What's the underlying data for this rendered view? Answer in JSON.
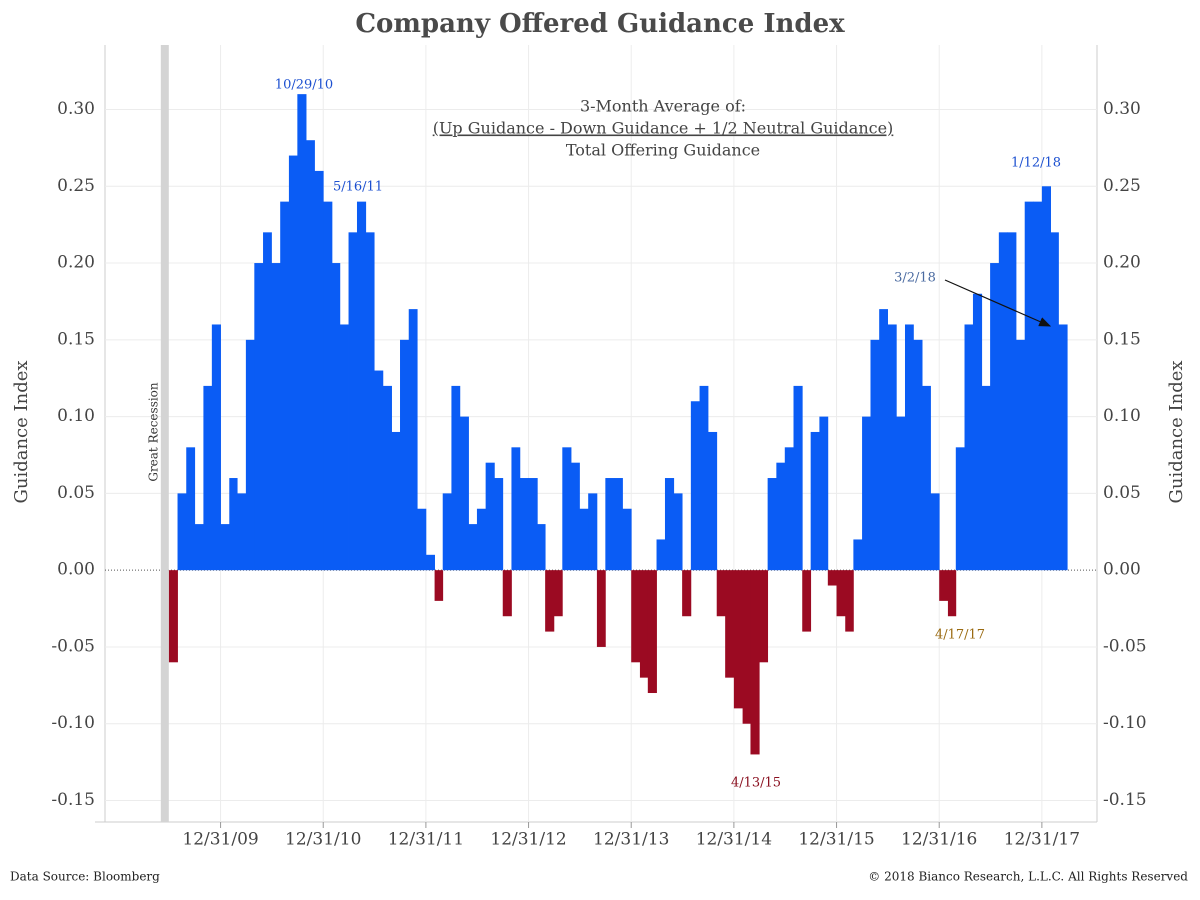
{
  "chart_data": {
    "type": "bar",
    "title": "Company Offered Guidance Index",
    "subtitle_lines": [
      "3-Month Average of:",
      "(Up Guidance - Down Guidance + 1/2 Neutral Guidance)",
      "Total Offering Guidance"
    ],
    "y_label": "Guidance Index",
    "y2_label": "Guidance Index",
    "source": "Data Source: Bloomberg",
    "copyright": "© 2018 Bianco Research, L.L.C. All Rights Reserved",
    "recession_label": "Great Recession",
    "recession_end": "06/30/09",
    "color": "#0a5cf5",
    "negative_color": "#9b0a22",
    "grid": true,
    "x": [
      "07/31/09",
      "08/31/09",
      "09/30/09",
      "10/31/09",
      "11/30/09",
      "12/31/09",
      "01/31/10",
      "02/28/10",
      "03/31/10",
      "04/30/10",
      "05/31/10",
      "06/30/10",
      "07/31/10",
      "08/31/10",
      "09/30/10",
      "10/31/10",
      "11/30/10",
      "12/31/10",
      "01/31/11",
      "02/28/11",
      "03/31/11",
      "04/30/11",
      "05/31/11",
      "06/30/11",
      "07/31/11",
      "08/31/11",
      "09/30/11",
      "10/31/11",
      "11/30/11",
      "12/31/11",
      "01/31/12",
      "02/29/12",
      "03/31/12",
      "04/30/12",
      "05/31/12",
      "06/30/12",
      "07/31/12",
      "08/31/12",
      "09/30/12",
      "10/31/12",
      "11/30/12",
      "12/31/12",
      "01/31/13",
      "02/28/13",
      "03/31/13",
      "04/30/13",
      "05/31/13",
      "06/30/13",
      "07/31/13",
      "08/31/13",
      "09/30/13",
      "10/31/13",
      "11/30/13",
      "12/31/13",
      "01/31/14",
      "02/28/14",
      "03/31/14",
      "04/30/14",
      "05/31/14",
      "06/30/14",
      "07/31/14",
      "08/31/14",
      "09/30/14",
      "10/31/14",
      "11/30/14",
      "12/31/14",
      "01/31/15",
      "02/28/15",
      "03/31/15",
      "04/30/15",
      "05/31/15",
      "06/30/15",
      "07/31/15",
      "08/31/15",
      "09/30/15",
      "10/31/15",
      "11/30/15",
      "12/31/15",
      "01/31/16",
      "02/29/16",
      "03/31/16",
      "04/30/16",
      "05/31/16",
      "06/30/16",
      "07/31/16",
      "08/31/16",
      "09/30/16",
      "10/31/16",
      "11/30/16",
      "12/31/16",
      "01/31/17",
      "02/28/17",
      "03/31/17",
      "04/30/17",
      "05/31/17",
      "06/30/17",
      "07/31/17",
      "08/31/17",
      "09/30/17",
      "10/31/17",
      "11/30/17",
      "12/31/17",
      "01/31/18",
      "02/28/18",
      "03/31/18"
    ],
    "values": [
      -0.06,
      0.05,
      0.08,
      0.03,
      0.12,
      0.16,
      0.03,
      0.06,
      0.05,
      0.15,
      0.2,
      0.22,
      0.2,
      0.24,
      0.27,
      0.31,
      0.28,
      0.26,
      0.24,
      0.2,
      0.16,
      0.22,
      0.24,
      0.22,
      0.13,
      0.12,
      0.09,
      0.15,
      0.17,
      0.04,
      0.01,
      -0.02,
      0.05,
      0.12,
      0.1,
      0.03,
      0.04,
      0.07,
      0.06,
      -0.03,
      0.08,
      0.06,
      0.06,
      0.03,
      -0.04,
      -0.03,
      0.08,
      0.07,
      0.04,
      0.05,
      -0.05,
      0.06,
      0.06,
      0.04,
      -0.06,
      -0.07,
      -0.08,
      0.02,
      0.06,
      0.05,
      -0.03,
      0.11,
      0.12,
      0.09,
      -0.03,
      -0.07,
      -0.09,
      -0.1,
      -0.12,
      -0.06,
      0.06,
      0.07,
      0.08,
      0.12,
      -0.04,
      0.09,
      0.1,
      -0.01,
      -0.03,
      -0.04,
      0.02,
      0.1,
      0.15,
      0.17,
      0.16,
      0.1,
      0.16,
      0.15,
      0.12,
      0.05,
      -0.02,
      -0.03,
      0.08,
      0.16,
      0.18,
      0.12,
      0.2,
      0.22,
      0.22,
      0.15,
      0.24,
      0.24,
      0.25,
      0.22,
      0.16
    ],
    "annotations": [
      "10/29/10",
      "5/16/11",
      "1/12/18",
      "3/2/18",
      "4/17/17",
      "4/13/15"
    ],
    "xlim": [
      "11/15/08",
      "07/15/18"
    ],
    "xticks": [
      "12/31/09",
      "12/31/10",
      "12/31/11",
      "12/31/12",
      "12/31/13",
      "12/31/14",
      "12/31/15",
      "12/31/16",
      "12/31/17"
    ],
    "ylim": [
      -0.164,
      0.342
    ],
    "yticks": [
      {
        "value": -0.15,
        "label": "-0.15"
      },
      {
        "value": -0.1,
        "label": "-0.10"
      },
      {
        "value": -0.05,
        "label": "-0.05"
      },
      {
        "value": 0,
        "label": "0.00"
      },
      {
        "value": 0.05,
        "label": "0.05"
      },
      {
        "value": 0.1,
        "label": "0.10"
      },
      {
        "value": 0.15,
        "label": "0.15"
      },
      {
        "value": 0.2,
        "label": "0.20"
      },
      {
        "value": 0.25,
        "label": "0.25"
      },
      {
        "value": 0.3,
        "label": "0.30"
      }
    ]
  }
}
